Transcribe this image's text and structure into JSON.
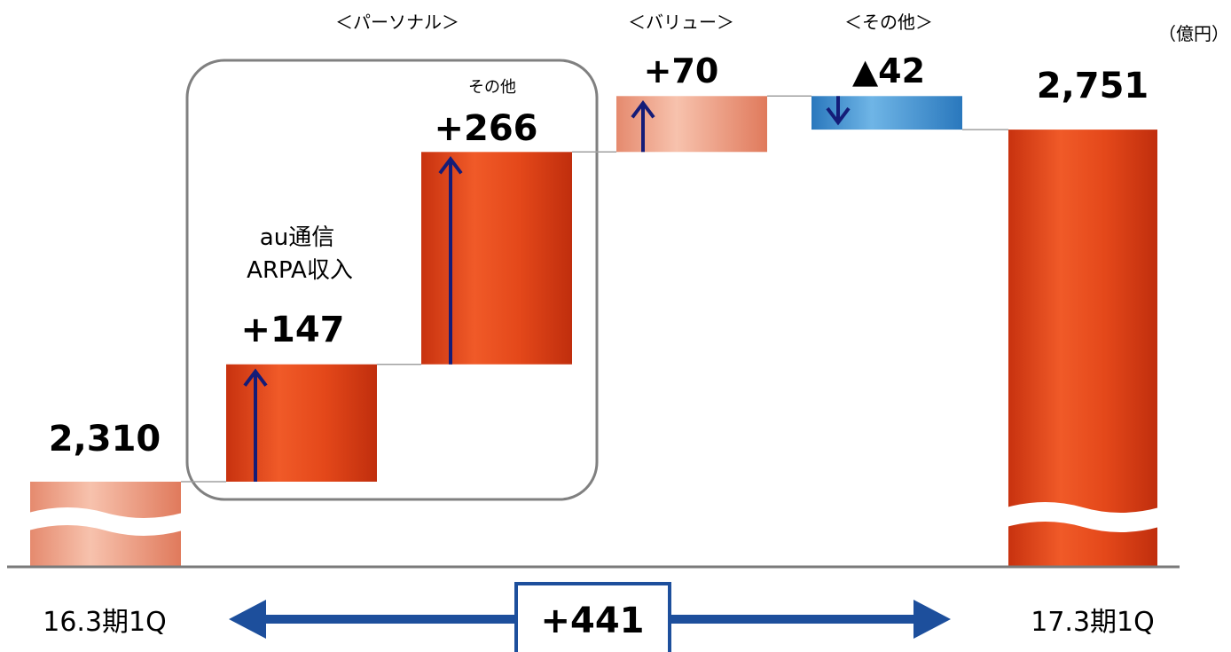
{
  "chart_data": {
    "type": "bar",
    "subtype": "waterfall",
    "unit_label": "（億円）",
    "start": {
      "label": "16.3期1Q",
      "value": 2310,
      "value_text": "2,310"
    },
    "end": {
      "label": "17.3期1Q",
      "value": 2751,
      "value_text": "2,751"
    },
    "steps": [
      {
        "name": "au通信\nARPA収入",
        "group": "<パーソナル>",
        "value": 147,
        "value_text": "+147",
        "color": "#e2451b"
      },
      {
        "name": "その他",
        "group": "<パーソナル>",
        "value": 266,
        "value_text": "+266",
        "color": "#e2451b"
      },
      {
        "name": "",
        "group": "<バリュー>",
        "value": 70,
        "value_text": "+70",
        "color": "#f0a48a"
      },
      {
        "name": "",
        "group": "<その他>",
        "value": -42,
        "value_text": "▲42",
        "color": "#3c8fce"
      }
    ],
    "groups": [
      "<パーソナル>",
      "<バリュー>",
      "<その他>"
    ],
    "total_change_text": "+441",
    "axis_break": true
  },
  "labels": {
    "unit": "（億円）",
    "group_personal": "＜パーソナル＞",
    "group_value": "＜バリュー＞",
    "group_other": "＜その他＞",
    "step1_name_line1": "au通信",
    "step1_name_line2": "ARPA収入",
    "step2_name": "その他",
    "start_category": "16.3期1Q",
    "end_category": "17.3期1Q",
    "total_change": "+441"
  },
  "colors": {
    "increase": "#e2451b",
    "increase_light": "#f0a48a",
    "decrease": "#3c8fce",
    "arrow": "#141c78",
    "total_arrow": "#1d4f9c",
    "box_border": "#808080",
    "baseline": "#7a7a7a"
  }
}
